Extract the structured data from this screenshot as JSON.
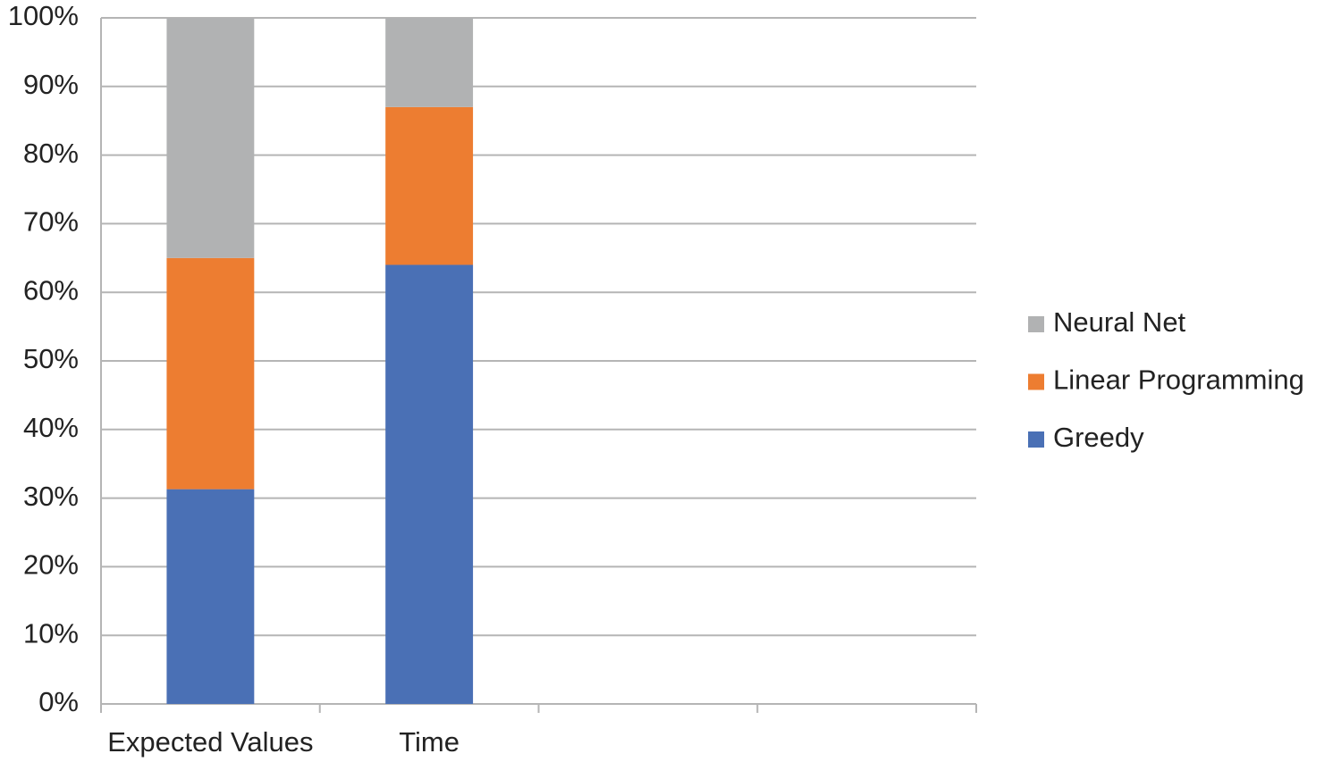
{
  "chart_data": {
    "type": "stacked_bar",
    "categories": [
      "Expected Values",
      "Time",
      null,
      null
    ],
    "series": [
      {
        "name": "Greedy",
        "color": "#4a70b5",
        "values": [
          31.3,
          64,
          null,
          null
        ]
      },
      {
        "name": "Linear Programming",
        "color": "#ed7d31",
        "values": [
          33.7,
          23,
          null,
          null
        ]
      },
      {
        "name": "Neural Net",
        "color": "#b1b2b3",
        "values": [
          35,
          13,
          null,
          null
        ]
      }
    ],
    "ylim": [
      0,
      100
    ],
    "yticks": [
      {
        "value": 0,
        "label": "0%"
      },
      {
        "value": 10,
        "label": "10%"
      },
      {
        "value": 20,
        "label": "20%"
      },
      {
        "value": 30,
        "label": "30%"
      },
      {
        "value": 40,
        "label": "40%"
      },
      {
        "value": 50,
        "label": "50%"
      },
      {
        "value": 60,
        "label": "60%"
      },
      {
        "value": 70,
        "label": "70%"
      },
      {
        "value": 80,
        "label": "80%"
      },
      {
        "value": 90,
        "label": "90%"
      },
      {
        "value": 100,
        "label": "100%"
      }
    ],
    "grid": true,
    "legend": "right"
  }
}
